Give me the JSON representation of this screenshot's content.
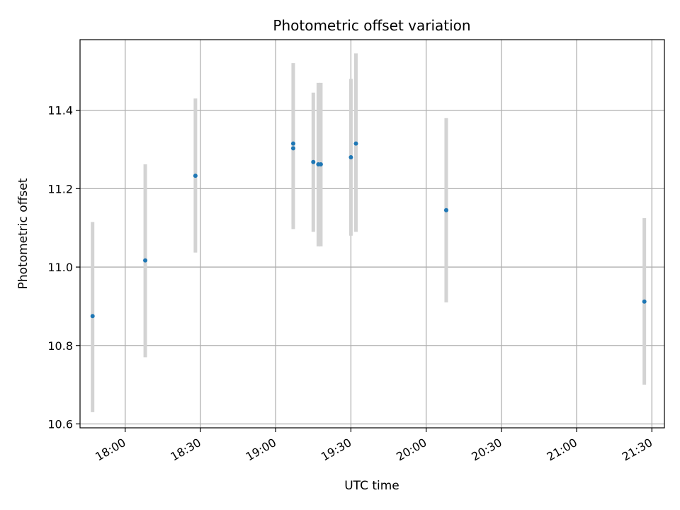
{
  "chart_data": {
    "type": "scatter",
    "title": "Photometric offset variation",
    "xlabel": "UTC time",
    "ylabel": "Photometric offset",
    "x_axis": {
      "kind": "time",
      "range": [
        "17:42",
        "21:35"
      ],
      "ticks": [
        "18:00",
        "18:30",
        "19:00",
        "19:30",
        "20:00",
        "20:30",
        "21:00",
        "21:30"
      ]
    },
    "y_axis": {
      "range": [
        10.59,
        11.58
      ],
      "ticks": [
        "10.6",
        "10.8",
        "11.0",
        "11.2",
        "11.4"
      ]
    },
    "grid": true,
    "series": [
      {
        "marker_color": "#1f77b4",
        "errorbar_color": "#d3d3d3",
        "points": [
          {
            "time": "17:47",
            "value": 10.875,
            "low": 10.63,
            "high": 11.115
          },
          {
            "time": "18:08",
            "value": 11.017,
            "low": 10.77,
            "high": 11.262
          },
          {
            "time": "18:28",
            "value": 11.233,
            "low": 11.037,
            "high": 11.43
          },
          {
            "time": "19:07",
            "value": 11.303,
            "low": 11.097,
            "high": 11.52
          },
          {
            "time": "19:07",
            "value": 11.315,
            "low": 11.11,
            "high": 11.52
          },
          {
            "time": "19:15",
            "value": 11.268,
            "low": 11.09,
            "high": 11.445
          },
          {
            "time": "19:17",
            "value": 11.262,
            "low": 11.053,
            "high": 11.47
          },
          {
            "time": "19:18",
            "value": 11.262,
            "low": 11.053,
            "high": 11.47
          },
          {
            "time": "19:30",
            "value": 11.28,
            "low": 11.08,
            "high": 11.48
          },
          {
            "time": "19:32",
            "value": 11.315,
            "low": 11.09,
            "high": 11.545
          },
          {
            "time": "20:08",
            "value": 11.145,
            "low": 10.91,
            "high": 11.38
          },
          {
            "time": "21:27",
            "value": 10.912,
            "low": 10.7,
            "high": 11.125
          }
        ]
      }
    ]
  }
}
